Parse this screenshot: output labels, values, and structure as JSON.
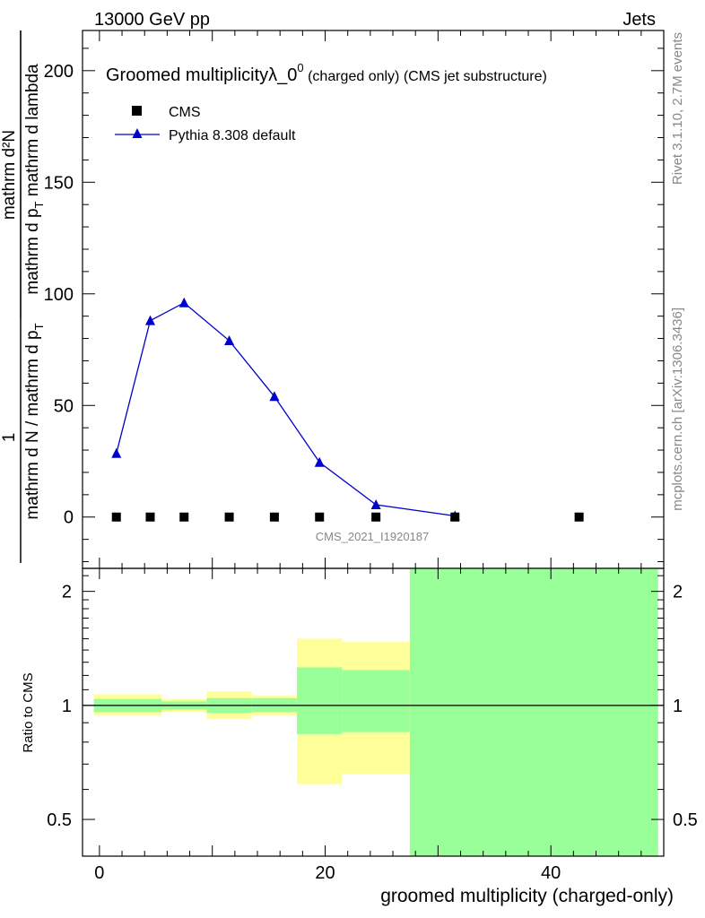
{
  "header": {
    "left": "13000 GeV pp",
    "right": "Jets"
  },
  "side_labels": {
    "rivet": "Rivet 3.1.10,  2.7M events",
    "mcplots": "mcplots.cern.ch [arXiv:1306.3436]"
  },
  "watermark": "CMS_2021_I1920187",
  "main_plot": {
    "title_main": "Groomed multiplicityλ_0",
    "title_sup": "0",
    "title_tail": " (charged only) (CMS jet substructure)",
    "ylabel_numerator": "mathrm d²N",
    "ylabel_denominator_a": "mathrm d p",
    "ylabel_denominator_b": " mathrm d lambda",
    "ylabel_sub": "T",
    "ylabel_prefactor": "1",
    "ylabel_norm": "mathrm d N / mathrm d p",
    "ylabel_norm_sub": "T",
    "yticks": [
      "0",
      "50",
      "100",
      "150",
      "200"
    ]
  },
  "legend": {
    "cms": "CMS",
    "pythia": "Pythia 8.308 default"
  },
  "ratio_plot": {
    "ylabel": "Ratio to CMS",
    "yticks": [
      "0.5",
      "1",
      "2"
    ],
    "xlabel": "groomed multiplicity (charged-only)",
    "xticks": [
      "0",
      "20",
      "40"
    ]
  },
  "colors": {
    "mc_line": "#0000cc",
    "data_marker": "#000000",
    "band_total": "#ffff99",
    "band_stat": "#99ff99",
    "text_grey": "#888888"
  },
  "chart_data": [
    {
      "type": "scatter",
      "xlabel": "",
      "ylabel": "1 / (mathrm d N / mathrm d p_T) mathrm d²N / (mathrm d p_T mathrm d lambda)",
      "xlim": [
        -1.5,
        50
      ],
      "ylim": [
        -23,
        218
      ],
      "series": [
        {
          "name": "CMS",
          "marker": "square",
          "x": [
            1.5,
            4.5,
            7.5,
            11.5,
            15.5,
            19.5,
            24.5,
            31.5,
            42.5
          ],
          "y": [
            0,
            0,
            0,
            0,
            0,
            0,
            0,
            0,
            0
          ]
        },
        {
          "name": "Pythia 8.308 default",
          "marker": "triangle",
          "x": [
            1.5,
            4.5,
            7.5,
            11.5,
            15.5,
            19.5,
            24.5,
            31.5
          ],
          "y": [
            28.5,
            88,
            96,
            79,
            54,
            24.5,
            5.5,
            0.5
          ]
        }
      ]
    },
    {
      "type": "area",
      "xlabel": "groomed multiplicity (charged-only)",
      "ylabel": "Ratio to CMS",
      "xlim": [
        -1.5,
        50
      ],
      "ylim": [
        0.4,
        2.3
      ],
      "log_y": true,
      "bins": [
        {
          "x_low": -0.5,
          "x_high": 5.5,
          "total": [
            0.94,
            1.07
          ],
          "stat": [
            0.96,
            1.04
          ]
        },
        {
          "x_low": 5.5,
          "x_high": 9.5,
          "total": [
            0.96,
            1.04
          ],
          "stat": [
            0.975,
            1.025
          ]
        },
        {
          "x_low": 9.5,
          "x_high": 13.5,
          "total": [
            0.92,
            1.09
          ],
          "stat": [
            0.955,
            1.045
          ]
        },
        {
          "x_low": 13.5,
          "x_high": 17.5,
          "total": [
            0.94,
            1.06
          ],
          "stat": [
            0.96,
            1.045
          ]
        },
        {
          "x_low": 17.5,
          "x_high": 21.5,
          "total": [
            0.62,
            1.5
          ],
          "stat": [
            0.84,
            1.26
          ]
        },
        {
          "x_low": 21.5,
          "x_high": 27.5,
          "total": [
            0.66,
            1.47
          ],
          "stat": [
            0.85,
            1.24
          ]
        },
        {
          "x_low": 27.5,
          "x_high": 49.5,
          "total": [
            0.4,
            2.3
          ],
          "stat": [
            0.4,
            2.3
          ]
        }
      ]
    }
  ]
}
